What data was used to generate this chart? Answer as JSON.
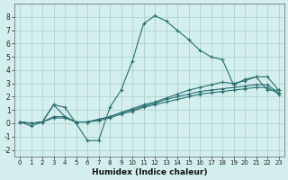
{
  "xlabel": "Humidex (Indice chaleur)",
  "background_color": "#d4eeed",
  "grid_color": "#afd4d0",
  "line_color": "#2a7070",
  "xlim": [
    -0.5,
    23.5
  ],
  "ylim": [
    -2.5,
    9.0
  ],
  "xticks": [
    0,
    1,
    2,
    3,
    4,
    5,
    6,
    7,
    8,
    9,
    10,
    11,
    12,
    13,
    14,
    15,
    16,
    17,
    18,
    19,
    20,
    21,
    22,
    23
  ],
  "yticks": [
    -2,
    -1,
    0,
    1,
    2,
    3,
    4,
    5,
    6,
    7,
    8
  ],
  "series": [
    [
      0.1,
      -0.2,
      0.1,
      1.4,
      1.2,
      0.0,
      -1.3,
      -1.3,
      1.2,
      2.5,
      4.7,
      7.5,
      8.1,
      7.7,
      7.0,
      6.3,
      5.5,
      5.0,
      4.8,
      2.9,
      3.3,
      3.5,
      2.5,
      2.5
    ],
    [
      0.1,
      0.0,
      0.1,
      1.4,
      0.5,
      0.1,
      0.1,
      0.3,
      0.5,
      0.8,
      1.1,
      1.4,
      1.6,
      1.9,
      2.2,
      2.5,
      2.7,
      2.9,
      3.1,
      3.0,
      3.2,
      3.5,
      3.5,
      2.5
    ],
    [
      0.1,
      0.0,
      0.1,
      0.5,
      0.5,
      0.1,
      0.1,
      0.3,
      0.5,
      0.8,
      1.0,
      1.3,
      1.5,
      1.8,
      2.0,
      2.2,
      2.4,
      2.5,
      2.6,
      2.7,
      2.8,
      2.9,
      2.9,
      2.3
    ],
    [
      0.1,
      0.0,
      0.1,
      0.4,
      0.4,
      0.1,
      0.1,
      0.2,
      0.4,
      0.7,
      0.9,
      1.2,
      1.4,
      1.6,
      1.8,
      2.0,
      2.2,
      2.3,
      2.4,
      2.5,
      2.6,
      2.7,
      2.7,
      2.2
    ]
  ]
}
